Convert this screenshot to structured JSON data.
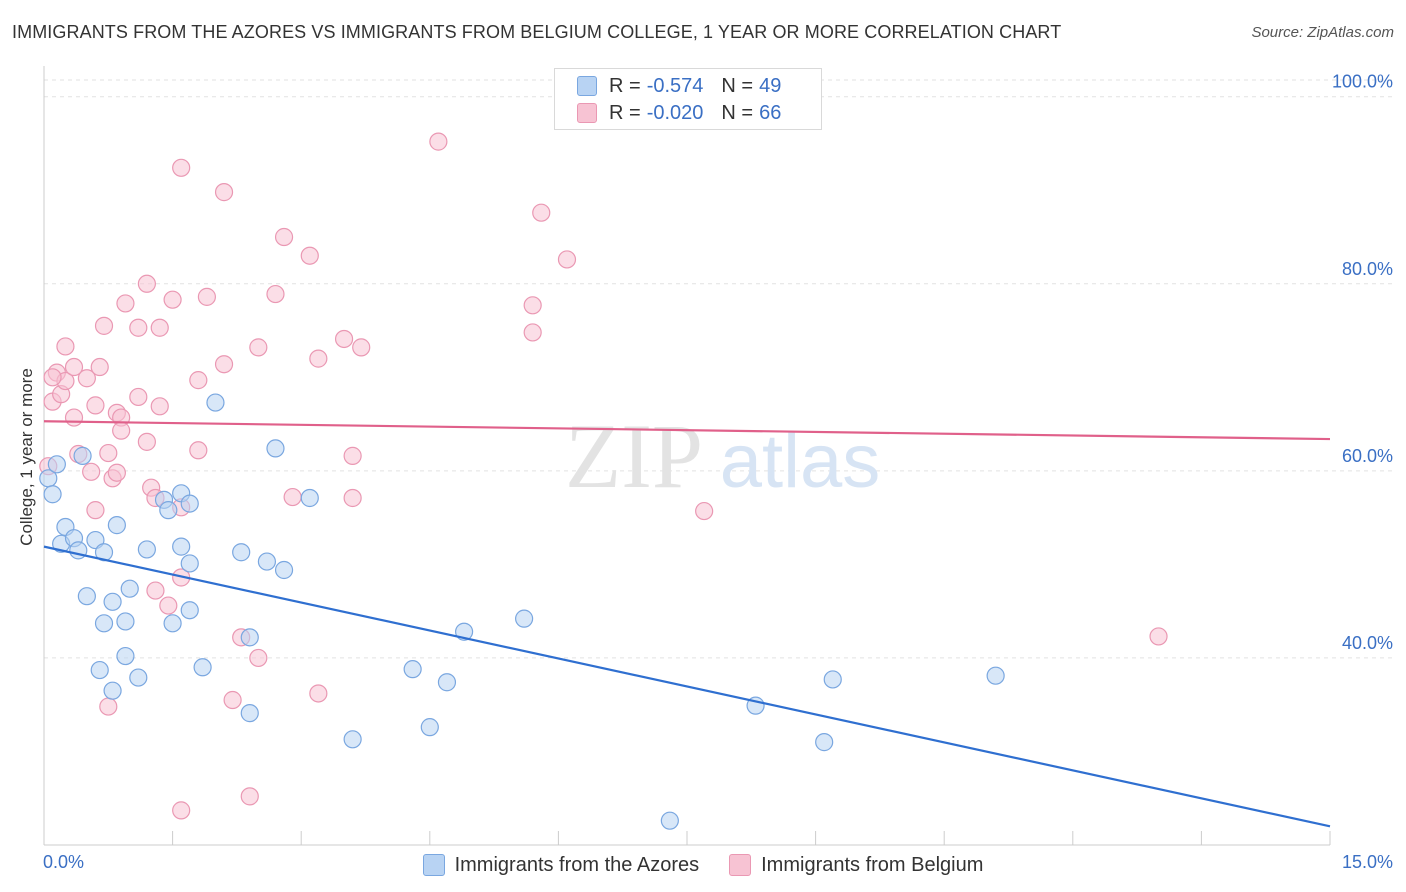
{
  "title": "IMMIGRANTS FROM THE AZORES VS IMMIGRANTS FROM BELGIUM COLLEGE, 1 YEAR OR MORE CORRELATION CHART",
  "source": "Source: ZipAtlas.com",
  "watermark": {
    "zip": "ZIP",
    "atlas": "atlas"
  },
  "legend": {
    "r_label": "R =",
    "n_label": "N =",
    "azores": {
      "r": "-0.574",
      "n": "49"
    },
    "belgium": {
      "r": "-0.020",
      "n": "66"
    }
  },
  "chart_data": {
    "type": "scatter",
    "title": "IMMIGRANTS FROM THE AZORES VS IMMIGRANTS FROM BELGIUM COLLEGE, 1 YEAR OR MORE CORRELATION CHART",
    "xlabel": "",
    "ylabel": "College, 1 year or more",
    "xlim": [
      0,
      15
    ],
    "ylim": [
      20,
      102
    ],
    "x_tick_labels": [
      "0.0%",
      "15.0%"
    ],
    "y_ticks": [
      40,
      60,
      80,
      100
    ],
    "y_tick_labels": [
      "40.0%",
      "60.0%",
      "80.0%",
      "100.0%"
    ],
    "grid": true,
    "legend_position": "top-center",
    "colors": {
      "azores_fill": "#b8d3f3",
      "azores_stroke": "#7aa7e0",
      "azores_line": "#2f6fd0",
      "belgium_fill": "#f7c3d3",
      "belgium_stroke": "#ea98b3",
      "belgium_line": "#e0608a"
    },
    "series": [
      {
        "name": "Immigrants from the Azores",
        "key": "azores",
        "trend": {
          "x": [
            0.0,
            15.0
          ],
          "y": [
            51.9,
            22.0
          ]
        },
        "points": [
          [
            0.05,
            59.2
          ],
          [
            0.1,
            57.5
          ],
          [
            0.15,
            60.7
          ],
          [
            0.45,
            61.6
          ],
          [
            0.25,
            54.0
          ],
          [
            0.2,
            52.2
          ],
          [
            0.35,
            52.8
          ],
          [
            0.6,
            52.6
          ],
          [
            0.7,
            51.3
          ],
          [
            0.85,
            54.2
          ],
          [
            0.4,
            51.5
          ],
          [
            0.5,
            46.6
          ],
          [
            0.8,
            46.0
          ],
          [
            1.0,
            47.4
          ],
          [
            0.7,
            43.7
          ],
          [
            0.95,
            43.9
          ],
          [
            0.65,
            38.7
          ],
          [
            0.95,
            40.2
          ],
          [
            1.1,
            37.9
          ],
          [
            0.8,
            36.5
          ],
          [
            1.2,
            51.6
          ],
          [
            1.4,
            56.9
          ],
          [
            1.6,
            57.6
          ],
          [
            1.45,
            55.8
          ],
          [
            1.7,
            56.5
          ],
          [
            1.7,
            50.1
          ],
          [
            1.5,
            43.7
          ],
          [
            1.7,
            45.1
          ],
          [
            1.6,
            51.9
          ],
          [
            2.0,
            67.3
          ],
          [
            1.85,
            39.0
          ],
          [
            2.3,
            51.3
          ],
          [
            2.4,
            42.2
          ],
          [
            2.4,
            34.1
          ],
          [
            2.7,
            62.4
          ],
          [
            2.6,
            50.3
          ],
          [
            2.8,
            49.4
          ],
          [
            3.1,
            57.1
          ],
          [
            3.6,
            31.3
          ],
          [
            4.3,
            38.8
          ],
          [
            4.5,
            32.6
          ],
          [
            4.7,
            37.4
          ],
          [
            4.9,
            42.8
          ],
          [
            5.6,
            44.2
          ],
          [
            8.3,
            34.9
          ],
          [
            9.1,
            31.0
          ],
          [
            9.2,
            37.7
          ],
          [
            11.1,
            38.1
          ],
          [
            7.3,
            22.6
          ]
        ]
      },
      {
        "name": "Immigrants from Belgium",
        "key": "belgium",
        "trend": {
          "x": [
            0.0,
            15.0
          ],
          "y": [
            65.3,
            63.4
          ]
        },
        "points": [
          [
            0.05,
            60.5
          ],
          [
            0.1,
            67.4
          ],
          [
            0.15,
            70.5
          ],
          [
            0.2,
            68.2
          ],
          [
            0.25,
            69.6
          ],
          [
            0.25,
            73.3
          ],
          [
            0.35,
            71.1
          ],
          [
            0.35,
            65.7
          ],
          [
            0.4,
            61.8
          ],
          [
            0.5,
            69.9
          ],
          [
            0.55,
            59.9
          ],
          [
            0.6,
            67.0
          ],
          [
            0.6,
            55.8
          ],
          [
            0.65,
            71.1
          ],
          [
            0.75,
            61.9
          ],
          [
            0.85,
            66.2
          ],
          [
            0.8,
            59.2
          ],
          [
            0.85,
            59.8
          ],
          [
            0.9,
            65.7
          ],
          [
            0.9,
            64.3
          ],
          [
            0.95,
            77.9
          ],
          [
            1.1,
            75.3
          ],
          [
            1.1,
            67.9
          ],
          [
            1.2,
            80.0
          ],
          [
            1.2,
            63.1
          ],
          [
            1.25,
            58.2
          ],
          [
            1.3,
            57.1
          ],
          [
            1.35,
            75.3
          ],
          [
            1.35,
            66.9
          ],
          [
            1.5,
            78.3
          ],
          [
            1.6,
            92.4
          ],
          [
            1.6,
            56.1
          ],
          [
            1.6,
            48.6
          ],
          [
            1.8,
            62.2
          ],
          [
            1.8,
            69.7
          ],
          [
            1.9,
            78.6
          ],
          [
            2.1,
            89.8
          ],
          [
            2.1,
            71.4
          ],
          [
            2.2,
            35.5
          ],
          [
            2.3,
            42.2
          ],
          [
            2.4,
            25.2
          ],
          [
            2.5,
            73.2
          ],
          [
            2.5,
            40.0
          ],
          [
            2.7,
            78.9
          ],
          [
            2.8,
            85.0
          ],
          [
            2.9,
            57.2
          ],
          [
            3.1,
            83.0
          ],
          [
            3.2,
            72.0
          ],
          [
            3.2,
            36.2
          ],
          [
            3.5,
            74.1
          ],
          [
            3.6,
            61.6
          ],
          [
            3.6,
            57.1
          ],
          [
            3.7,
            73.2
          ],
          [
            4.6,
            95.2
          ],
          [
            5.7,
            77.7
          ],
          [
            5.7,
            74.8
          ],
          [
            5.8,
            87.6
          ],
          [
            6.1,
            82.6
          ],
          [
            7.7,
            55.7
          ],
          [
            13.0,
            42.3
          ],
          [
            0.1,
            70.0
          ],
          [
            0.7,
            75.5
          ],
          [
            1.3,
            47.2
          ],
          [
            1.45,
            45.6
          ],
          [
            0.75,
            34.8
          ],
          [
            1.6,
            23.7
          ]
        ]
      }
    ]
  },
  "axes": {
    "ylabel": "College, 1 year or more",
    "x_tick_first": "0.0%",
    "x_tick_last": "15.0%"
  },
  "bottom_legend": {
    "azores": "Immigrants from the Azores",
    "belgium": "Immigrants from Belgium"
  }
}
